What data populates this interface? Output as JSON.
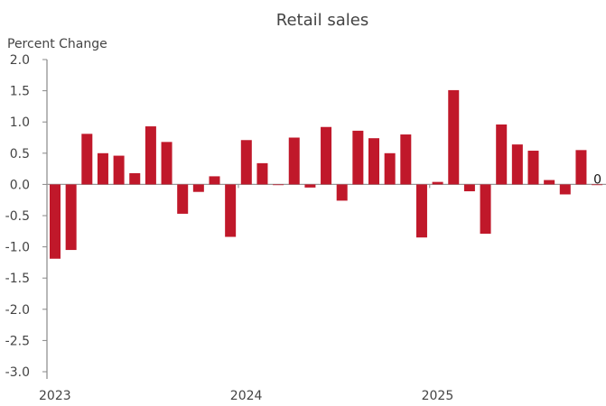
{
  "chart_data": {
    "type": "bar",
    "title": "Retail sales",
    "ylabel": "Percent Change",
    "xlabel": "",
    "ylim": [
      -3.0,
      2.0
    ],
    "yticks": [
      "2.0",
      "1.5",
      "1.0",
      "0.5",
      "0.0",
      "-0.5",
      "-1.0",
      "-1.5",
      "-2.0",
      "-2.5",
      "-3.0"
    ],
    "ytick_values": [
      2.0,
      1.5,
      1.0,
      0.5,
      0.0,
      -0.5,
      -1.0,
      -1.5,
      -2.0,
      -2.5,
      -3.0
    ],
    "xtick_labels": [
      {
        "label": "2023",
        "index": 0
      },
      {
        "label": "2024",
        "index": 12
      },
      {
        "label": "2025",
        "index": 24
      }
    ],
    "categories": [
      "2023-01",
      "2023-02",
      "2023-03",
      "2023-04",
      "2023-05",
      "2023-06",
      "2023-07",
      "2023-08",
      "2023-09",
      "2023-10",
      "2023-11",
      "2023-12",
      "2024-01",
      "2024-02",
      "2024-03",
      "2024-04",
      "2024-05",
      "2024-06",
      "2024-07",
      "2024-08",
      "2024-09",
      "2024-10",
      "2024-11",
      "2024-12",
      "2025-01",
      "2025-02",
      "2025-03",
      "2025-04",
      "2025-05",
      "2025-06",
      "2025-07",
      "2025-08",
      "2025-09",
      "2025-10",
      "2025-11"
    ],
    "values": [
      -1.19,
      -1.05,
      0.81,
      0.5,
      0.46,
      0.18,
      0.93,
      0.68,
      -0.47,
      -0.12,
      0.13,
      -0.84,
      0.71,
      0.34,
      -0.01,
      0.75,
      -0.05,
      0.92,
      -0.26,
      0.86,
      0.74,
      0.5,
      0.8,
      -0.85,
      0.04,
      1.51,
      -0.11,
      -0.79,
      0.96,
      0.64,
      0.54,
      0.07,
      -0.16,
      0.55,
      0
    ],
    "data_labels": [
      {
        "index": 34,
        "text": "0"
      }
    ],
    "bar_color": "#c0182a",
    "grid": false
  }
}
